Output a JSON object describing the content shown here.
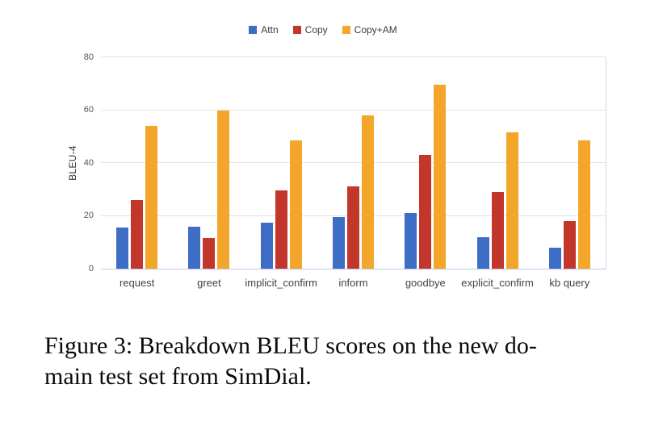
{
  "figure": {
    "caption_line1": "Figure 3: Breakdown BLEU scores on the new do-",
    "caption_line2": "main test set from SimDial."
  },
  "chart_data": {
    "type": "bar",
    "title": "",
    "xlabel": "",
    "ylabel": "BLEU-4",
    "ylim": [
      0,
      80
    ],
    "yticks": [
      0,
      20,
      40,
      60,
      80
    ],
    "grid": true,
    "legend_position": "top",
    "categories": [
      "request",
      "greet",
      "implicit_confirm",
      "inform",
      "goodbye",
      "explicit_confirm",
      "kb query"
    ],
    "series": [
      {
        "name": "Attn",
        "color": "#3e6dc5",
        "values": [
          15.5,
          16,
          17.5,
          19.5,
          21,
          12,
          8
        ]
      },
      {
        "name": "Copy",
        "color": "#c3362b",
        "values": [
          26,
          11.5,
          29.5,
          31,
          43,
          29,
          18
        ]
      },
      {
        "name": "Copy+AM",
        "color": "#f3a62a",
        "values": [
          54,
          60,
          48.5,
          58,
          69.5,
          51.5,
          48.5
        ]
      }
    ]
  }
}
